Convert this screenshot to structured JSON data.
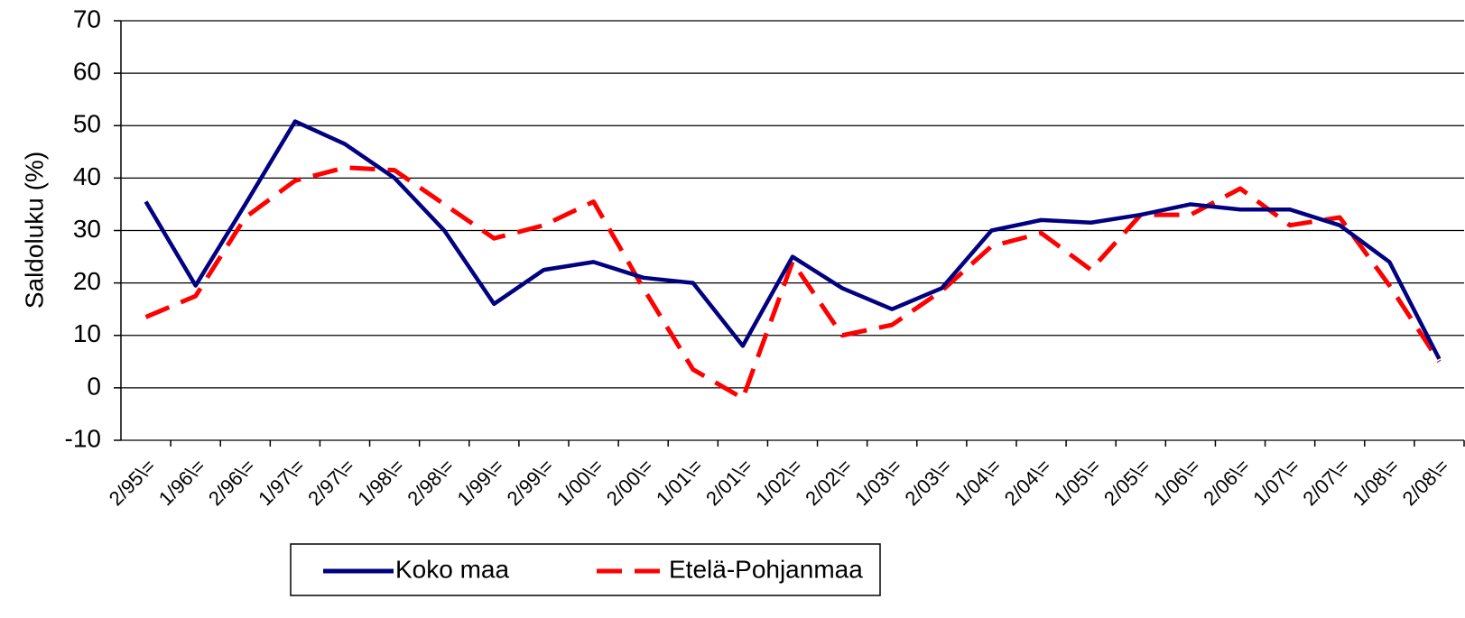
{
  "chart_data": {
    "type": "line",
    "y_label": "Saldoluku (%)",
    "categories": [
      "2/95\\=",
      "1/96\\=",
      "2/96\\=",
      "1/97\\=",
      "2/97\\=",
      "1/98\\=",
      "2/98\\=",
      "1/99\\=",
      "2/99\\=",
      "1/00\\=",
      "2/00\\=",
      "1/01\\=",
      "2/01\\=",
      "1/02\\=",
      "2/02\\=",
      "1/03\\=",
      "2/03\\=",
      "1/04\\=",
      "2/04\\=",
      "1/05\\=",
      "2/05\\=",
      "1/06\\=",
      "2/06\\=",
      "1/07\\=",
      "2/07\\=",
      "1/08\\=",
      "2/08\\="
    ],
    "series": [
      {
        "name": "Koko maa",
        "color": "#000080",
        "dash": false,
        "values": [
          35.5,
          19.5,
          35,
          50.8,
          46.5,
          40,
          30,
          16,
          22.5,
          24,
          21,
          20,
          8,
          25,
          19,
          15,
          19,
          30,
          32,
          31.5,
          33,
          35,
          34,
          34,
          31,
          24,
          5.5
        ]
      },
      {
        "name": "Etelä-Pohjanmaa",
        "color": "#ff0000",
        "dash": true,
        "values": [
          13.5,
          17.5,
          32.5,
          39.5,
          42,
          41.5,
          35,
          28.5,
          31,
          35.5,
          19,
          3.5,
          -2,
          24,
          10,
          12,
          18.5,
          27,
          29.5,
          22.5,
          33,
          33,
          38,
          31,
          32.5,
          19.5,
          5
        ]
      }
    ],
    "ylim": [
      -10,
      70
    ],
    "yticks": [
      -10,
      0,
      10,
      20,
      30,
      40,
      50,
      60,
      70
    ],
    "grid": true
  }
}
